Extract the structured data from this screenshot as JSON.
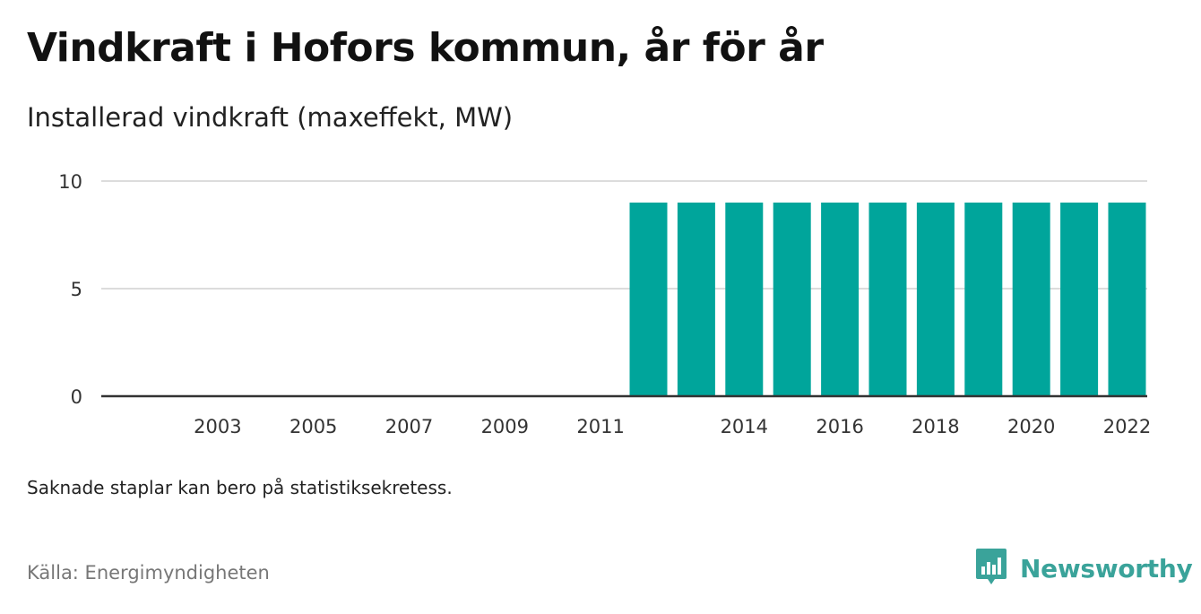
{
  "header": {
    "title": "Vindkraft i Hofors kommun, år för år",
    "subtitle": "Installerad vindkraft (maxeffekt, MW)"
  },
  "footer": {
    "note": "Saknade staplar kan bero på statistiksekretess.",
    "source": "Källa: Energimyndigheten",
    "brand": "Newsworthy"
  },
  "colors": {
    "bar": "#00a59b",
    "gridline": "#dcdcdc",
    "axis": "#333333",
    "brand": "#3aa39a"
  },
  "chart_data": {
    "type": "bar",
    "title": "Vindkraft i Hofors kommun, år för år",
    "subtitle": "Installerad vindkraft (maxeffekt, MW)",
    "xlabel": "",
    "ylabel": "",
    "categories": [
      "2002",
      "2003",
      "2004",
      "2005",
      "2006",
      "2007",
      "2008",
      "2009",
      "2010",
      "2011",
      "2012",
      "2013",
      "2014",
      "2015",
      "2016",
      "2017",
      "2018",
      "2019",
      "2020",
      "2021",
      "2022"
    ],
    "values": [
      null,
      null,
      null,
      null,
      null,
      null,
      null,
      null,
      null,
      null,
      9,
      9,
      9,
      9,
      9,
      9,
      9,
      9,
      9,
      9,
      9
    ],
    "x_tick_labels": [
      "2003",
      "2005",
      "2007",
      "2009",
      "2011",
      "2014",
      "2016",
      "2018",
      "2020",
      "2022"
    ],
    "y_ticks": [
      0,
      5,
      10
    ],
    "ylim": [
      0,
      10
    ],
    "grid": true,
    "legend": "none"
  }
}
